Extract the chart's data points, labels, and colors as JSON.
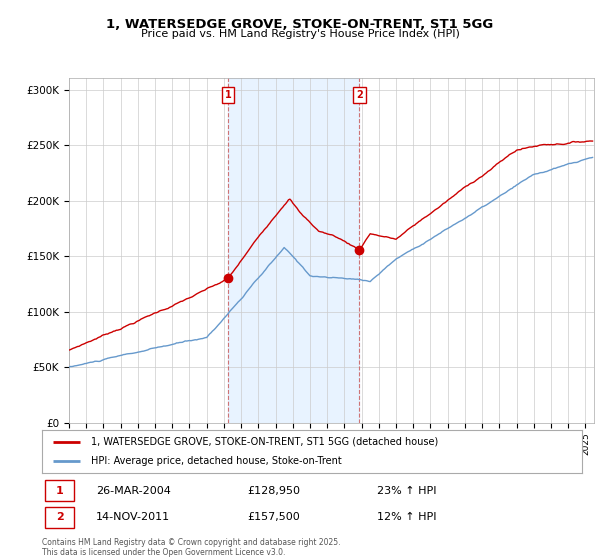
{
  "title": "1, WATERSEDGE GROVE, STOKE-ON-TRENT, ST1 5GG",
  "subtitle": "Price paid vs. HM Land Registry's House Price Index (HPI)",
  "ylim": [
    0,
    310000
  ],
  "yticks": [
    0,
    50000,
    100000,
    150000,
    200000,
    250000,
    300000
  ],
  "ytick_labels": [
    "£0",
    "£50K",
    "£100K",
    "£150K",
    "£200K",
    "£250K",
    "£300K"
  ],
  "red_color": "#cc0000",
  "blue_color": "#6699cc",
  "shade_color": "#ddeeff",
  "sale1_date": "26-MAR-2004",
  "sale1_price": 128950,
  "sale1_hpi": "23% ↑ HPI",
  "sale2_date": "14-NOV-2011",
  "sale2_price": 157500,
  "sale2_hpi": "12% ↑ HPI",
  "legend_line1": "1, WATERSEDGE GROVE, STOKE-ON-TRENT, ST1 5GG (detached house)",
  "legend_line2": "HPI: Average price, detached house, Stoke-on-Trent",
  "footnote": "Contains HM Land Registry data © Crown copyright and database right 2025.\nThis data is licensed under the Open Government Licence v3.0.",
  "sale1_x_year": 2004.23,
  "sale2_x_year": 2011.87,
  "xmin": 1995.0,
  "xmax": 2025.5
}
